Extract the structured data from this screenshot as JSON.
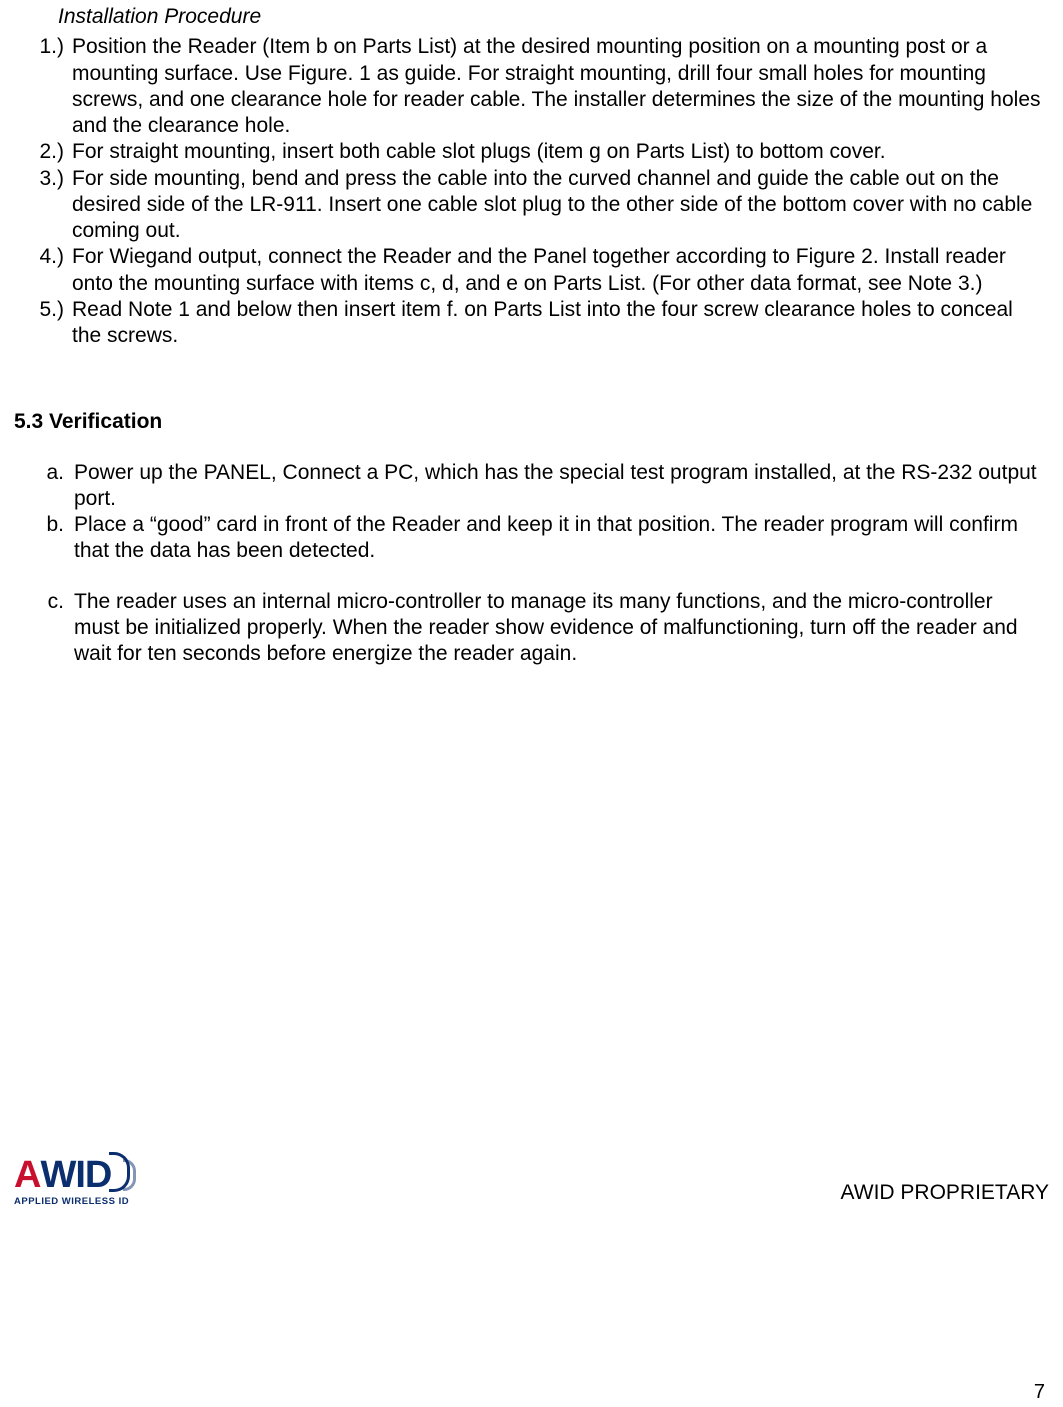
{
  "sectionTitle": "Installation Procedure",
  "procedure": {
    "items": [
      {
        "marker": "1.)",
        "text": "Position the Reader (Item b on Parts List) at the desired mounting position on a mounting post or a mounting surface.  Use Figure. 1 as guide. For straight mounting, drill four small holes for mounting screws, and one clearance hole for reader cable. The installer determines the size of the mounting holes and the clearance hole."
      },
      {
        "marker": "2.)",
        "text": "For straight mounting, insert both cable slot plugs (item g on Parts List) to bottom cover."
      },
      {
        "marker": "3.)",
        "text": "For side mounting, bend and press the cable into the curved channel and guide the cable out on the desired side of the LR-911. Insert one cable slot plug to the other side of the bottom cover with no cable coming out."
      },
      {
        "marker": "4.)",
        "text": "For Wiegand output, connect the Reader and the Panel together according to Figure 2. Install reader onto the mounting surface with items c, d, and e on Parts List. (For other data format, see Note 3.)"
      },
      {
        "marker": "5.)",
        "text": "Read Note 1 and below then insert item f. on Parts List into the four screw clearance holes to conceal the screws."
      }
    ]
  },
  "verification": {
    "heading": "5.3 Verification",
    "items": [
      {
        "marker": "a.",
        "text": "Power up the PANEL, Connect a PC, which has the special test program installed, at the RS-232 output port."
      },
      {
        "marker": "b.",
        "text": "Place a “good” card in front of the Reader and keep it in that position.  The reader program will confirm that the data has been detected."
      },
      {
        "marker": "c.",
        "text": "The reader uses an internal micro-controller to manage its many functions, and the micro-controller must be initialized properly.  When the reader show evidence of malfunctioning, turn off the reader and wait for ten seconds before energize the reader again."
      }
    ]
  },
  "logo": {
    "letterA": "A",
    "letterWID": "WID",
    "subtext": "APPLIED WIRELESS ID"
  },
  "footerRight": "AWID PROPRIETARY",
  "pageNumber": "7"
}
